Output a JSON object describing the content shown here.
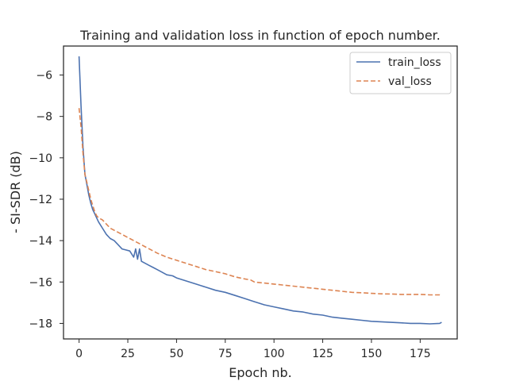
{
  "chart_data": {
    "type": "line",
    "title": "Training and validation loss in function of epoch number.",
    "xlabel": "Epoch nb.",
    "ylabel": "- SI-SDR (dB)",
    "xlim": [
      -8,
      194
    ],
    "ylim": [
      -18.75,
      -4.6
    ],
    "xticks": [
      0,
      25,
      50,
      75,
      100,
      125,
      150,
      175
    ],
    "xtick_labels": [
      "0",
      "25",
      "50",
      "75",
      "100",
      "125",
      "150",
      "175"
    ],
    "yticks": [
      -6,
      -8,
      -10,
      -12,
      -14,
      -16,
      -18
    ],
    "ytick_labels": [
      "−6",
      "−8",
      "−10",
      "−12",
      "−14",
      "−16",
      "−18"
    ],
    "grid": false,
    "legend_position": "top-right",
    "series": [
      {
        "name": "train_loss",
        "color": "#4c72b0",
        "dash": "solid",
        "x": [
          0,
          1,
          2,
          3,
          4,
          5,
          6,
          7,
          8,
          9,
          10,
          12,
          14,
          16,
          18,
          20,
          22,
          24,
          26,
          28,
          29,
          30,
          31,
          32,
          34,
          36,
          38,
          40,
          42,
          45,
          48,
          50,
          55,
          60,
          65,
          70,
          75,
          80,
          85,
          90,
          95,
          100,
          105,
          110,
          115,
          120,
          125,
          130,
          135,
          140,
          145,
          150,
          155,
          160,
          165,
          170,
          175,
          180,
          185,
          186
        ],
        "y": [
          -5.1,
          -7.5,
          -9.5,
          -10.8,
          -11.3,
          -11.8,
          -12.2,
          -12.5,
          -12.7,
          -12.9,
          -13.1,
          -13.4,
          -13.7,
          -13.9,
          -14.0,
          -14.2,
          -14.4,
          -14.45,
          -14.5,
          -14.8,
          -14.4,
          -14.9,
          -14.4,
          -15.0,
          -15.1,
          -15.2,
          -15.3,
          -15.4,
          -15.5,
          -15.65,
          -15.7,
          -15.8,
          -15.95,
          -16.1,
          -16.25,
          -16.4,
          -16.5,
          -16.65,
          -16.8,
          -16.95,
          -17.1,
          -17.2,
          -17.3,
          -17.4,
          -17.45,
          -17.55,
          -17.6,
          -17.7,
          -17.75,
          -17.8,
          -17.85,
          -17.9,
          -17.92,
          -17.95,
          -17.97,
          -18.0,
          -18.0,
          -18.02,
          -18.0,
          -17.95
        ]
      },
      {
        "name": "val_loss",
        "color": "#dd8452",
        "dash": "dashed",
        "x": [
          0,
          1,
          2,
          3,
          4,
          5,
          6,
          7,
          8,
          9,
          10,
          12,
          14,
          16,
          18,
          20,
          22,
          24,
          26,
          28,
          30,
          32,
          34,
          36,
          38,
          40,
          45,
          50,
          55,
          60,
          65,
          70,
          75,
          80,
          85,
          88,
          90,
          95,
          100,
          105,
          110,
          115,
          120,
          125,
          130,
          135,
          140,
          145,
          150,
          155,
          160,
          165,
          170,
          175,
          180,
          185,
          186
        ],
        "y": [
          -7.6,
          -8.5,
          -9.8,
          -10.8,
          -11.2,
          -11.6,
          -12.0,
          -12.3,
          -12.6,
          -12.8,
          -12.9,
          -13.0,
          -13.2,
          -13.4,
          -13.5,
          -13.6,
          -13.7,
          -13.8,
          -13.9,
          -14.0,
          -14.1,
          -14.2,
          -14.3,
          -14.4,
          -14.5,
          -14.6,
          -14.8,
          -14.95,
          -15.1,
          -15.25,
          -15.4,
          -15.5,
          -15.6,
          -15.75,
          -15.85,
          -15.9,
          -16.0,
          -16.05,
          -16.1,
          -16.15,
          -16.2,
          -16.25,
          -16.3,
          -16.35,
          -16.4,
          -16.45,
          -16.5,
          -16.52,
          -16.55,
          -16.57,
          -16.58,
          -16.6,
          -16.6,
          -16.6,
          -16.62,
          -16.62,
          -16.65
        ]
      }
    ]
  }
}
